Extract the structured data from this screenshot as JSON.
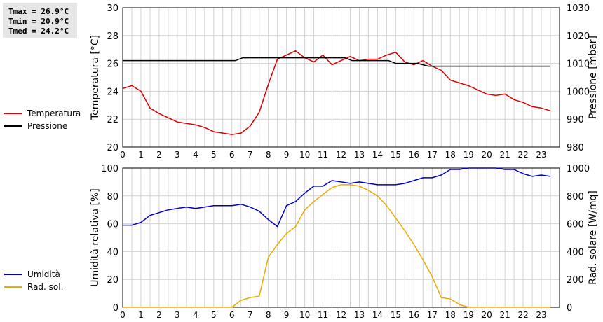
{
  "stats": {
    "tmax": "Tmax = 26.9°C",
    "tmin": "Tmin = 20.9°C",
    "tmed": "Tmed = 24.2°C"
  },
  "chart_data": [
    {
      "type": "line",
      "ylabel": "Temperatura [°C]",
      "ylabel_right": "Pressione [mbar]",
      "xlim": [
        0,
        24
      ],
      "ylim": [
        20,
        30
      ],
      "ylim_right": [
        980,
        1030
      ],
      "xticks": [
        0,
        1,
        2,
        3,
        4,
        5,
        6,
        7,
        8,
        9,
        10,
        11,
        12,
        13,
        14,
        15,
        16,
        17,
        18,
        19,
        20,
        21,
        22,
        23
      ],
      "yticks": [
        20,
        22,
        24,
        26,
        28,
        30
      ],
      "yticks_right": [
        980,
        990,
        1000,
        1010,
        1020,
        1030
      ],
      "grid": true,
      "legend_position": "left",
      "series": [
        {
          "name": "Temperatura",
          "axis": "left",
          "color": "#dd0000",
          "x": [
            0,
            0.5,
            1,
            1.5,
            2,
            2.5,
            3,
            3.5,
            4,
            4.5,
            5,
            5.5,
            6,
            6.5,
            7,
            7.5,
            8,
            8.5,
            9,
            9.5,
            10,
            10.5,
            11,
            11.5,
            12,
            12.5,
            13,
            13.5,
            14,
            14.5,
            15,
            15.5,
            16,
            16.5,
            17,
            17.5,
            18,
            18.5,
            19,
            19.5,
            20,
            20.5,
            21,
            21.5,
            22,
            22.5,
            23,
            23.5
          ],
          "y": [
            24.2,
            24.4,
            24.0,
            22.8,
            22.4,
            22.1,
            21.8,
            21.7,
            21.6,
            21.4,
            21.1,
            21.0,
            20.9,
            21.0,
            21.5,
            22.5,
            24.5,
            26.3,
            26.6,
            26.9,
            26.4,
            26.1,
            26.6,
            25.9,
            26.2,
            26.5,
            26.2,
            26.3,
            26.3,
            26.6,
            26.8,
            26.1,
            25.9,
            26.2,
            25.8,
            25.5,
            24.8,
            24.6,
            24.4,
            24.1,
            23.8,
            23.7,
            23.8,
            23.4,
            23.2,
            22.9,
            22.8,
            22.6
          ]
        },
        {
          "name": "Pressione",
          "axis": "right",
          "color": "#000000",
          "x": [
            0,
            6.2,
            6.6,
            12.2,
            12.6,
            14.6,
            15.0,
            16.2,
            16.8,
            23.5
          ],
          "y": [
            1011,
            1011,
            1012,
            1012,
            1011,
            1011,
            1010,
            1010,
            1009,
            1009
          ]
        }
      ]
    },
    {
      "type": "line",
      "ylabel": "Umidità relativa [%]",
      "ylabel_right": "Rad. solare [W/mq]",
      "xlim": [
        0,
        24
      ],
      "ylim": [
        0,
        100
      ],
      "ylim_right": [
        0,
        1000
      ],
      "xticks": [
        0,
        1,
        2,
        3,
        4,
        5,
        6,
        7,
        8,
        9,
        10,
        11,
        12,
        13,
        14,
        15,
        16,
        17,
        18,
        19,
        20,
        21,
        22,
        23
      ],
      "yticks": [
        0,
        20,
        40,
        60,
        80,
        100
      ],
      "yticks_right": [
        0,
        200,
        400,
        600,
        800,
        1000
      ],
      "grid": true,
      "legend_position": "left",
      "series": [
        {
          "name": "Umidità",
          "axis": "left",
          "color": "#0000cc",
          "x": [
            0,
            0.5,
            1,
            1.5,
            2,
            2.5,
            3,
            3.5,
            4,
            4.5,
            5,
            5.5,
            6,
            6.5,
            7,
            7.5,
            8,
            8.5,
            9,
            9.5,
            10,
            10.5,
            11,
            11.5,
            12,
            12.5,
            13,
            13.5,
            14,
            14.5,
            15,
            15.5,
            16,
            16.5,
            17,
            17.5,
            18,
            18.5,
            19,
            19.5,
            20,
            20.5,
            21,
            21.5,
            22,
            22.5,
            23,
            23.5
          ],
          "y": [
            59,
            59,
            61,
            66,
            68,
            70,
            71,
            72,
            71,
            72,
            73,
            73,
            73,
            74,
            72,
            69,
            63,
            58,
            73,
            76,
            82,
            87,
            87,
            91,
            90,
            89,
            90,
            89,
            88,
            88,
            88,
            89,
            91,
            93,
            93,
            95,
            99,
            99,
            100,
            100,
            100,
            100,
            99,
            99,
            96,
            94,
            95,
            94
          ]
        },
        {
          "name": "Rad. sol.",
          "axis": "right",
          "color": "#eeaa00",
          "x": [
            0,
            0.5,
            1,
            1.5,
            2,
            2.5,
            3,
            3.5,
            4,
            4.5,
            5,
            5.5,
            6,
            6.5,
            7,
            7.5,
            8,
            8.5,
            9,
            9.5,
            10,
            10.5,
            11,
            11.5,
            12,
            12.5,
            13,
            13.5,
            14,
            14.5,
            15,
            15.5,
            16,
            16.5,
            17,
            17.5,
            18,
            18.5,
            19,
            19.5,
            20,
            20.5,
            21,
            21.5,
            22,
            22.5,
            23,
            23.5
          ],
          "y": [
            0,
            0,
            0,
            0,
            0,
            0,
            0,
            0,
            0,
            0,
            0,
            0,
            0,
            50,
            70,
            80,
            360,
            450,
            530,
            580,
            700,
            760,
            810,
            860,
            880,
            880,
            870,
            840,
            800,
            730,
            640,
            550,
            450,
            340,
            220,
            70,
            60,
            20,
            0,
            0,
            0,
            0,
            0,
            0,
            0,
            0,
            0,
            0
          ]
        }
      ]
    }
  ]
}
